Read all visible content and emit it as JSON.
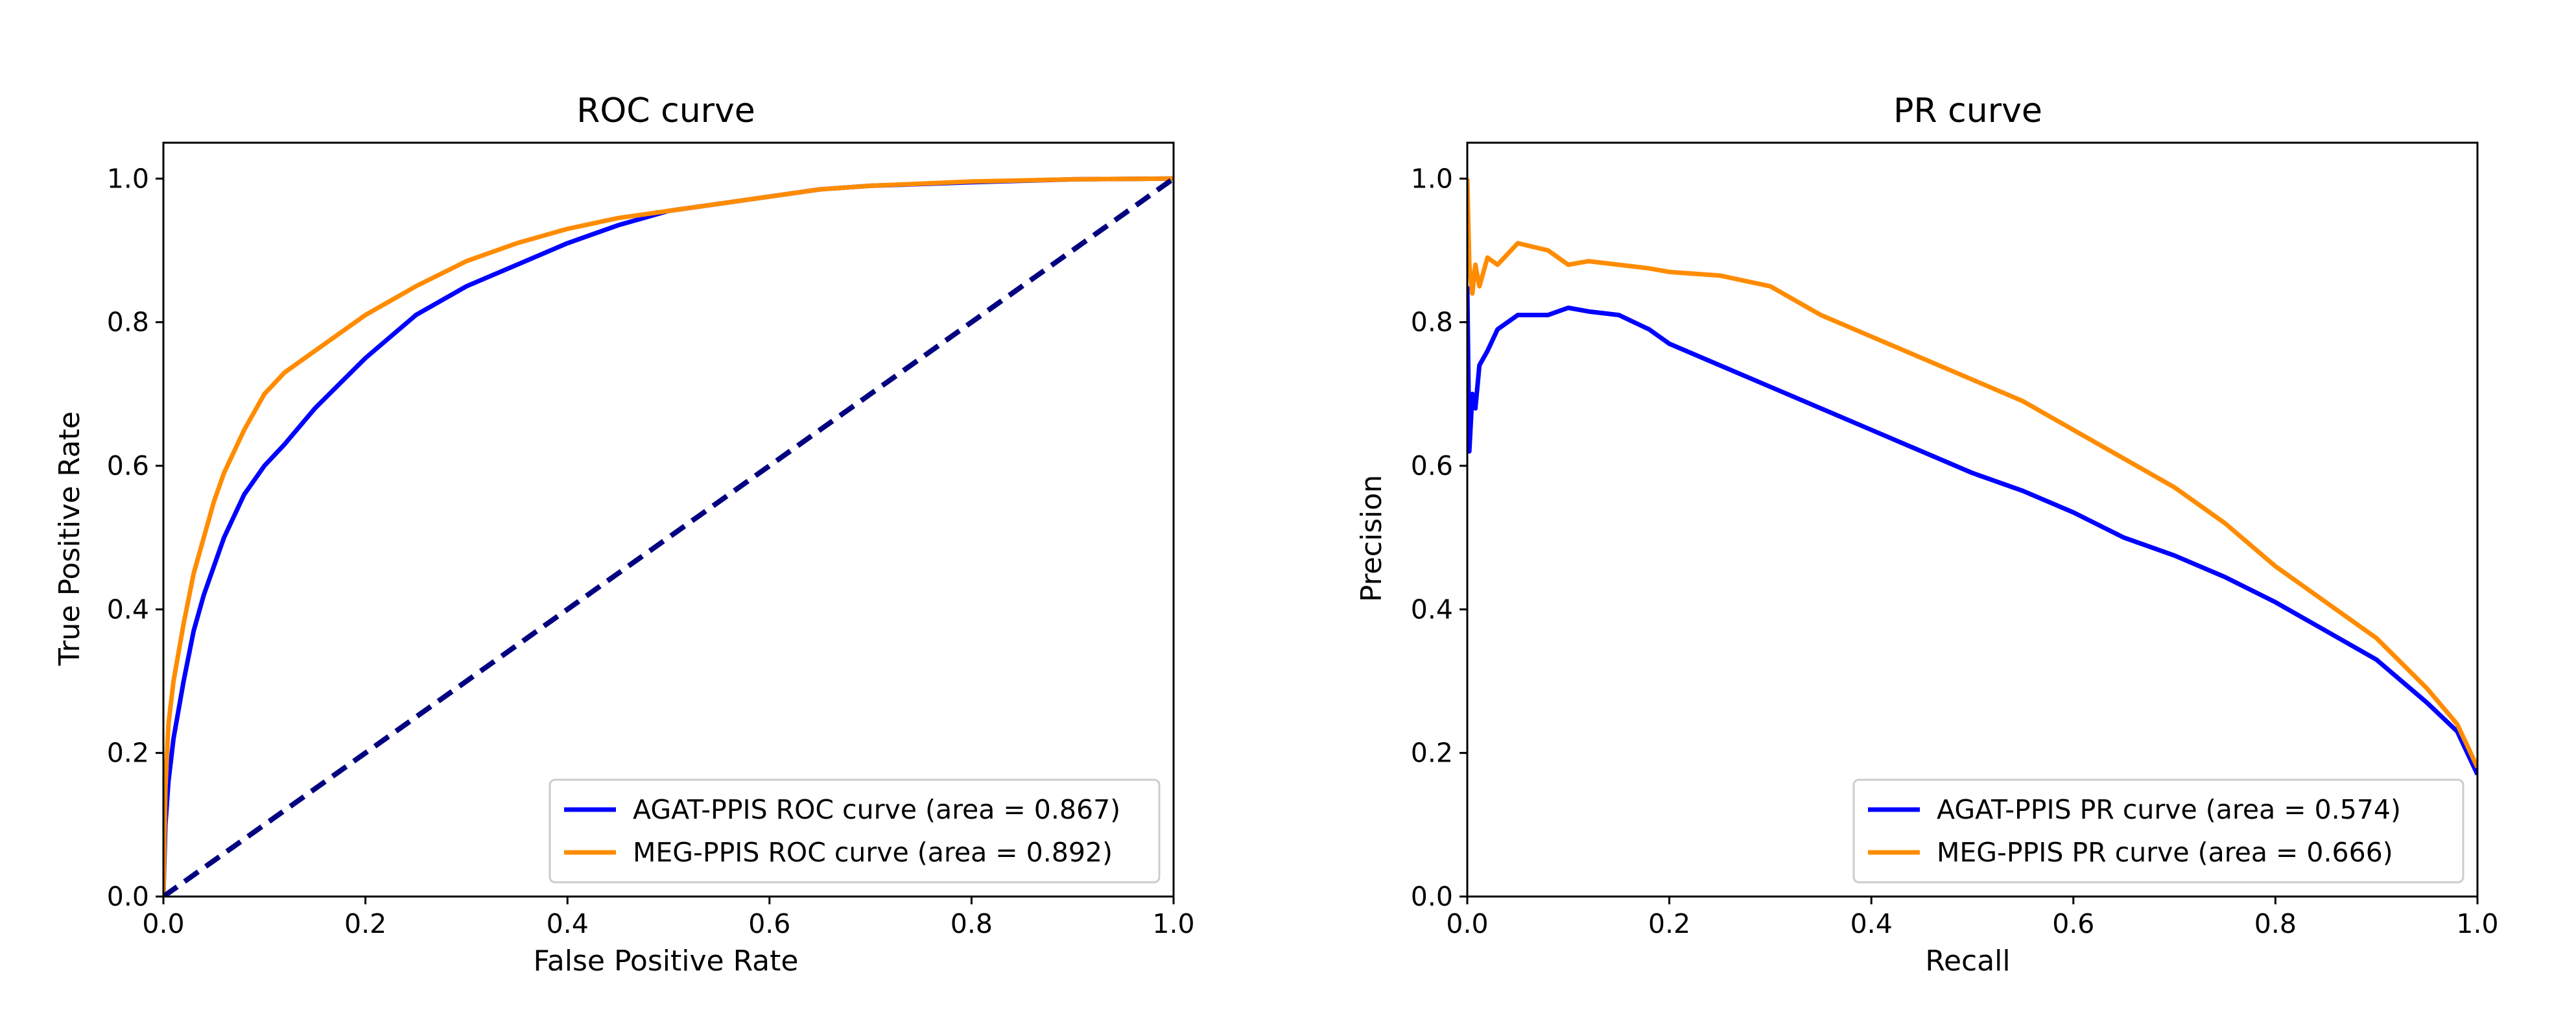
{
  "chart_data": [
    {
      "type": "line",
      "title": "ROC curve",
      "xlabel": "False Positive Rate",
      "ylabel": "True Positive Rate",
      "xlim": [
        0,
        1
      ],
      "ylim": [
        0,
        1.05
      ],
      "xticks": [
        "0.0",
        "0.2",
        "0.4",
        "0.6",
        "0.8",
        "1.0"
      ],
      "yticks": [
        "0.0",
        "0.2",
        "0.4",
        "0.6",
        "0.8",
        "1.0"
      ],
      "grid": false,
      "legend_position": "lower right",
      "series": [
        {
          "name": "AGAT-PPIS ROC curve (area = 0.867)",
          "color": "#0000ff",
          "x": [
            0,
            0.002,
            0.005,
            0.01,
            0.02,
            0.03,
            0.04,
            0.05,
            0.06,
            0.08,
            0.1,
            0.12,
            0.15,
            0.2,
            0.25,
            0.3,
            0.35,
            0.4,
            0.45,
            0.5,
            0.55,
            0.6,
            0.65,
            0.7,
            0.8,
            0.9,
            1.0
          ],
          "y": [
            0,
            0.1,
            0.16,
            0.22,
            0.3,
            0.37,
            0.42,
            0.46,
            0.5,
            0.56,
            0.6,
            0.63,
            0.68,
            0.75,
            0.81,
            0.85,
            0.88,
            0.91,
            0.935,
            0.955,
            0.965,
            0.975,
            0.985,
            0.99,
            0.995,
            0.999,
            1.0
          ]
        },
        {
          "name": "MEG-PPIS ROC curve (area = 0.892)",
          "color": "#ff8c00",
          "x": [
            0,
            0.002,
            0.005,
            0.01,
            0.02,
            0.03,
            0.04,
            0.05,
            0.06,
            0.08,
            0.1,
            0.12,
            0.15,
            0.2,
            0.25,
            0.3,
            0.35,
            0.4,
            0.45,
            0.5,
            0.55,
            0.6,
            0.65,
            0.7,
            0.8,
            0.9,
            1.0
          ],
          "y": [
            0,
            0.15,
            0.24,
            0.3,
            0.38,
            0.45,
            0.5,
            0.55,
            0.59,
            0.65,
            0.7,
            0.73,
            0.76,
            0.81,
            0.85,
            0.885,
            0.91,
            0.93,
            0.945,
            0.955,
            0.965,
            0.975,
            0.985,
            0.99,
            0.996,
            0.999,
            1.0
          ]
        },
        {
          "name": "",
          "color": "#000080",
          "dashed": true,
          "x": [
            0,
            1
          ],
          "y": [
            0,
            1
          ]
        }
      ]
    },
    {
      "type": "line",
      "title": "PR curve",
      "xlabel": "Recall",
      "ylabel": "Precision",
      "xlim": [
        0,
        1
      ],
      "ylim": [
        0,
        1.05
      ],
      "xticks": [
        "0.0",
        "0.2",
        "0.4",
        "0.6",
        "0.8",
        "1.0"
      ],
      "yticks": [
        "0.0",
        "0.2",
        "0.4",
        "0.6",
        "0.8",
        "1.0"
      ],
      "grid": false,
      "legend_position": "lower right",
      "series": [
        {
          "name": "AGAT-PPIS PR curve (area = 0.574)",
          "color": "#0000ff",
          "x": [
            0,
            0.002,
            0.005,
            0.008,
            0.012,
            0.02,
            0.03,
            0.05,
            0.08,
            0.1,
            0.12,
            0.15,
            0.18,
            0.2,
            0.25,
            0.3,
            0.35,
            0.4,
            0.45,
            0.5,
            0.55,
            0.6,
            0.65,
            0.7,
            0.75,
            0.8,
            0.85,
            0.9,
            0.95,
            0.98,
            1.0
          ],
          "y": [
            0.85,
            0.62,
            0.7,
            0.68,
            0.74,
            0.76,
            0.79,
            0.81,
            0.81,
            0.82,
            0.815,
            0.81,
            0.79,
            0.77,
            0.74,
            0.71,
            0.68,
            0.65,
            0.62,
            0.59,
            0.565,
            0.535,
            0.5,
            0.475,
            0.445,
            0.41,
            0.37,
            0.33,
            0.27,
            0.23,
            0.17
          ]
        },
        {
          "name": "MEG-PPIS PR curve (area = 0.666)",
          "color": "#ff8c00",
          "x": [
            0,
            0.002,
            0.005,
            0.008,
            0.012,
            0.02,
            0.03,
            0.05,
            0.08,
            0.1,
            0.12,
            0.15,
            0.18,
            0.2,
            0.25,
            0.3,
            0.35,
            0.4,
            0.45,
            0.5,
            0.55,
            0.6,
            0.65,
            0.7,
            0.75,
            0.8,
            0.85,
            0.9,
            0.95,
            0.98,
            1.0
          ],
          "y": [
            1.0,
            0.88,
            0.84,
            0.88,
            0.85,
            0.89,
            0.88,
            0.91,
            0.9,
            0.88,
            0.885,
            0.88,
            0.875,
            0.87,
            0.865,
            0.85,
            0.81,
            0.78,
            0.75,
            0.72,
            0.69,
            0.65,
            0.61,
            0.57,
            0.52,
            0.46,
            0.41,
            0.36,
            0.29,
            0.24,
            0.18
          ]
        }
      ]
    }
  ]
}
